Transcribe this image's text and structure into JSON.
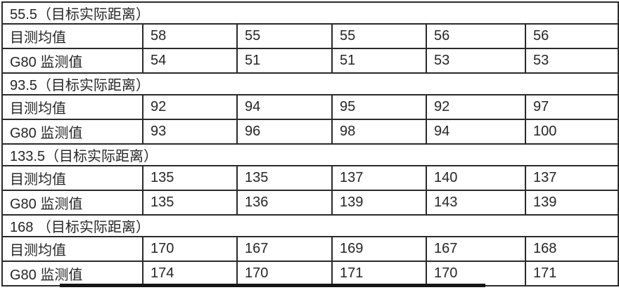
{
  "table": {
    "sections": [
      {
        "header": "55.5（目标实际距离）",
        "rows": [
          {
            "label": "目测均值",
            "values": [
              "58",
              "55",
              "55",
              "56",
              "56"
            ]
          },
          {
            "label": "G80 监测值",
            "values": [
              "54",
              "51",
              "51",
              "53",
              "53"
            ]
          }
        ]
      },
      {
        "header": "93.5（目标实际距离）",
        "rows": [
          {
            "label": "目测均值",
            "values": [
              "92",
              "94",
              "95",
              "92",
              "97"
            ]
          },
          {
            "label": "G80 监测值",
            "values": [
              "93",
              "96",
              "98",
              "94",
              "100"
            ]
          }
        ]
      },
      {
        "header": "133.5（目标实际距离）",
        "rows": [
          {
            "label": "目测均值",
            "values": [
              "135",
              "135",
              "137",
              "140",
              "137"
            ]
          },
          {
            "label": "G80 监测值",
            "values": [
              "135",
              "136",
              "139",
              "143",
              "139"
            ]
          }
        ]
      },
      {
        "header": "168 （目标实际距离）",
        "rows": [
          {
            "label": "目测均值",
            "values": [
              "170",
              "167",
              "169",
              "167",
              "168"
            ]
          },
          {
            "label": "G80 监测值",
            "values": [
              "174",
              "170",
              "171",
              "170",
              "171"
            ]
          }
        ]
      }
    ]
  },
  "chart_data": {
    "type": "table",
    "title": "",
    "row_labels": [
      "目测均值",
      "G80 监测值"
    ],
    "groups": [
      {
        "target_actual_distance": 55.5,
        "目测均值": [
          58,
          55,
          55,
          56,
          56
        ],
        "G80监测值": [
          54,
          51,
          51,
          53,
          53
        ]
      },
      {
        "target_actual_distance": 93.5,
        "目测均值": [
          92,
          94,
          95,
          92,
          97
        ],
        "G80监测值": [
          93,
          96,
          98,
          94,
          100
        ]
      },
      {
        "target_actual_distance": 133.5,
        "目测均值": [
          135,
          135,
          137,
          140,
          137
        ],
        "G80监测值": [
          135,
          136,
          139,
          143,
          139
        ]
      },
      {
        "target_actual_distance": 168,
        "目测均值": [
          170,
          167,
          169,
          167,
          168
        ],
        "G80监测值": [
          174,
          170,
          171,
          170,
          171
        ]
      }
    ]
  }
}
